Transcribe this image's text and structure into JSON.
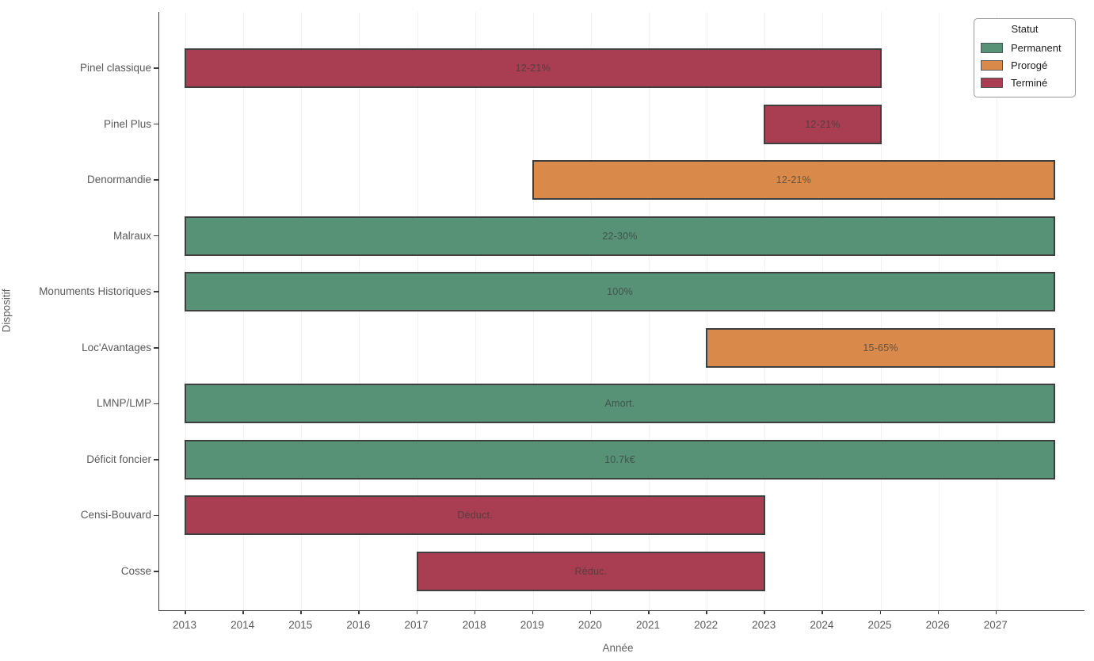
{
  "axes": {
    "x_label": "Année",
    "y_label": "Dispositif"
  },
  "legend": {
    "title": "Statut",
    "entries": [
      {
        "label": "Permanent",
        "status": "Permanent"
      },
      {
        "label": "Prorogé",
        "status": "Prorogé"
      },
      {
        "label": "Terminé",
        "status": "Terminé"
      }
    ]
  },
  "chart_data": {
    "type": "bar",
    "subtype": "gantt-horizontal-range",
    "title": "",
    "xlabel": "Année",
    "ylabel": "Dispositif",
    "xlim": [
      2012.5,
      2028.5
    ],
    "x_ticks": [
      2013,
      2014,
      2015,
      2016,
      2017,
      2018,
      2019,
      2020,
      2021,
      2022,
      2023,
      2024,
      2025,
      2026,
      2027
    ],
    "grid": "vertical, very light",
    "legend_position": "upper right",
    "categories": [
      "Pinel classique",
      "Pinel Plus",
      "Denormandie",
      "Malraux",
      "Monuments Historiques",
      "Loc'Avantages",
      "LMNP/LMP",
      "Déficit foncier",
      "Censi-Bouvard",
      "Cosse"
    ],
    "bars": [
      {
        "dispositif": "Pinel classique",
        "start": 2013,
        "end": 2025,
        "status": "Terminé",
        "label": "12-21%"
      },
      {
        "dispositif": "Pinel Plus",
        "start": 2023,
        "end": 2025,
        "status": "Terminé",
        "label": "12-21%"
      },
      {
        "dispositif": "Denormandie",
        "start": 2019,
        "end": 2028,
        "status": "Prorogé",
        "label": "12-21%"
      },
      {
        "dispositif": "Malraux",
        "start": 2013,
        "end": 2028,
        "status": "Permanent",
        "label": "22-30%"
      },
      {
        "dispositif": "Monuments Historiques",
        "start": 2013,
        "end": 2028,
        "status": "Permanent",
        "label": "100%"
      },
      {
        "dispositif": "Loc'Avantages",
        "start": 2022,
        "end": 2028,
        "status": "Prorogé",
        "label": "15-65%"
      },
      {
        "dispositif": "LMNP/LMP",
        "start": 2013,
        "end": 2028,
        "status": "Permanent",
        "label": "Amort."
      },
      {
        "dispositif": "Déficit foncier",
        "start": 2013,
        "end": 2028,
        "status": "Permanent",
        "label": "10.7k€"
      },
      {
        "dispositif": "Censi-Bouvard",
        "start": 2013,
        "end": 2023,
        "status": "Terminé",
        "label": "Déduct."
      },
      {
        "dispositif": "Cosse",
        "start": 2017,
        "end": 2023,
        "status": "Terminé",
        "label": "Réduc."
      }
    ],
    "status_colors": {
      "Permanent": "#579277",
      "Prorogé": "#d98a4a",
      "Terminé": "#a93e52"
    }
  }
}
